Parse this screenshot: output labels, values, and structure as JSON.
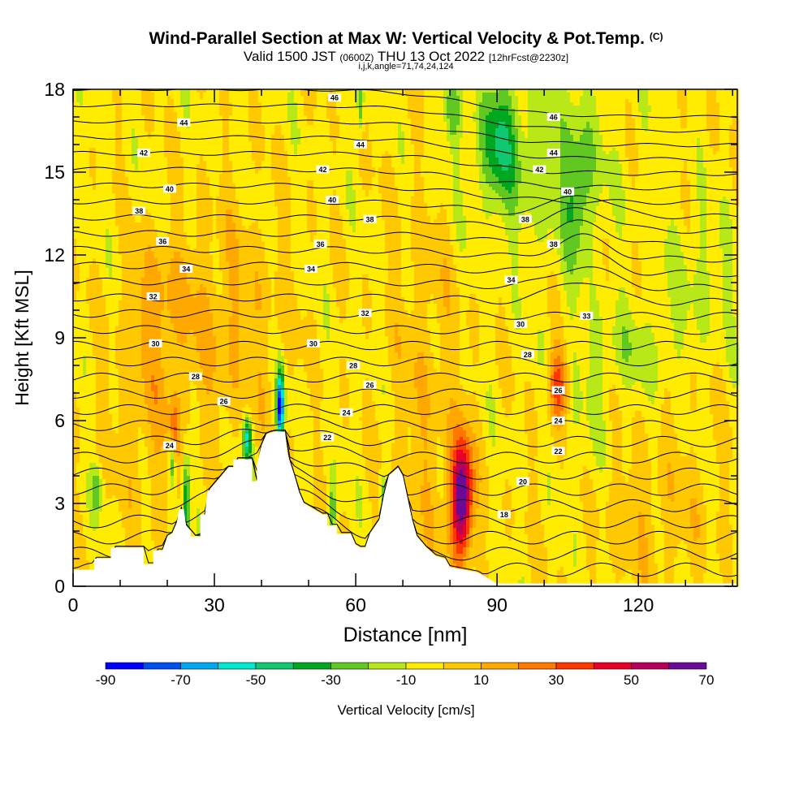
{
  "header": {
    "title": "Wind-Parallel Section at Max W: Vertical Velocity & Pot.Temp.",
    "title_tag": "(C)",
    "valid_main": "Valid 1500 JST",
    "valid_zulu": "(0600Z)",
    "valid_date": "THU 13 Oct 2022",
    "forecast": "[12hrFcst@2230z]",
    "indices": "i,j,k,angle=71,74,24,124"
  },
  "chart_data": {
    "type": "heatmap",
    "xlabel": "Distance [nm]",
    "ylabel": "Height [Kft MSL]",
    "xlim": [
      0,
      141
    ],
    "ylim": [
      0,
      18
    ],
    "x_ticks": [
      0,
      30,
      60,
      90,
      120
    ],
    "y_ticks": [
      0,
      3,
      6,
      9,
      12,
      15,
      18
    ],
    "colorbar": {
      "label": "Vertical Velocity [cm/s]",
      "tick_labels": [
        -90,
        -70,
        -50,
        -30,
        -10,
        10,
        30,
        50,
        70
      ],
      "bins": [
        {
          "lo": -90,
          "hi": -80,
          "color": "#0000ff"
        },
        {
          "lo": -80,
          "hi": -70,
          "color": "#0050f0"
        },
        {
          "lo": -70,
          "hi": -60,
          "color": "#00a8f0"
        },
        {
          "lo": -60,
          "hi": -50,
          "color": "#00e8d0"
        },
        {
          "lo": -50,
          "hi": -40,
          "color": "#10c870"
        },
        {
          "lo": -40,
          "hi": -30,
          "color": "#00a820"
        },
        {
          "lo": -30,
          "hi": -20,
          "color": "#60c820"
        },
        {
          "lo": -20,
          "hi": -10,
          "color": "#b8e818"
        },
        {
          "lo": -10,
          "hi": 0,
          "color": "#ffec00"
        },
        {
          "lo": 0,
          "hi": 10,
          "color": "#ffc800"
        },
        {
          "lo": 10,
          "hi": 20,
          "color": "#ffa800"
        },
        {
          "lo": 20,
          "hi": 30,
          "color": "#ff7800"
        },
        {
          "lo": 30,
          "hi": 40,
          "color": "#ff3800"
        },
        {
          "lo": 40,
          "hi": 50,
          "color": "#e80028"
        },
        {
          "lo": 50,
          "hi": 60,
          "color": "#b8005a"
        },
        {
          "lo": 60,
          "hi": 70,
          "color": "#6a0a96"
        }
      ]
    },
    "terrain_kft": [
      [
        0,
        0.6
      ],
      [
        4.5,
        0.6
      ],
      [
        4.5,
        1.0
      ],
      [
        8,
        1.0
      ],
      [
        8,
        1.4
      ],
      [
        15,
        1.4
      ],
      [
        15,
        0.8
      ],
      [
        17,
        0.8
      ],
      [
        17,
        1.3
      ],
      [
        19,
        1.3
      ],
      [
        20,
        1.8
      ],
      [
        21,
        1.9
      ],
      [
        22,
        2.3
      ],
      [
        22.5,
        2.8
      ],
      [
        23.5,
        2.8
      ],
      [
        24,
        2.2
      ],
      [
        25,
        2.0
      ],
      [
        25,
        1.8
      ],
      [
        27,
        1.8
      ],
      [
        27,
        2.6
      ],
      [
        28,
        2.6
      ],
      [
        28.5,
        3.4
      ],
      [
        31,
        3.9
      ],
      [
        33,
        4.3
      ],
      [
        34,
        4.3
      ],
      [
        34,
        4.6
      ],
      [
        38,
        4.6
      ],
      [
        38,
        3.8
      ],
      [
        39,
        3.8
      ],
      [
        39,
        4.4
      ],
      [
        40,
        5.1
      ],
      [
        41,
        5.5
      ],
      [
        42.5,
        5.6
      ],
      [
        45,
        5.6
      ],
      [
        45.5,
        4.8
      ],
      [
        47,
        4.0
      ],
      [
        48,
        3.4
      ],
      [
        49,
        3.0
      ],
      [
        51,
        2.8
      ],
      [
        53,
        2.6
      ],
      [
        54,
        2.6
      ],
      [
        54,
        2.2
      ],
      [
        56,
        2.2
      ],
      [
        56,
        1.9
      ],
      [
        59,
        1.9
      ],
      [
        60,
        1.5
      ],
      [
        61,
        1.4
      ],
      [
        62,
        1.4
      ],
      [
        63,
        1.9
      ],
      [
        65,
        2.4
      ],
      [
        66,
        3.3
      ],
      [
        67,
        4.0
      ],
      [
        69,
        4.3
      ],
      [
        70,
        4.0
      ],
      [
        71,
        3.2
      ],
      [
        72,
        2.4
      ],
      [
        73,
        1.8
      ],
      [
        75,
        1.4
      ],
      [
        77,
        1.1
      ],
      [
        79,
        1.0
      ],
      [
        80,
        0.7
      ],
      [
        83,
        0.6
      ],
      [
        86,
        0.5
      ],
      [
        88,
        0.3
      ],
      [
        90,
        0.1
      ],
      [
        93,
        0.1
      ],
      [
        141,
        0.1
      ]
    ],
    "theta_labels_C": [
      {
        "v": 46,
        "x": 55.5,
        "y": 17.7
      },
      {
        "v": 44,
        "x": 23.5,
        "y": 16.8
      },
      {
        "v": 42,
        "x": 15,
        "y": 15.7
      },
      {
        "v": 44,
        "x": 61,
        "y": 16.0
      },
      {
        "v": 42,
        "x": 53,
        "y": 15.1
      },
      {
        "v": 40,
        "x": 20.5,
        "y": 14.4
      },
      {
        "v": 40,
        "x": 55,
        "y": 14.0
      },
      {
        "v": 38,
        "x": 14,
        "y": 13.6
      },
      {
        "v": 38,
        "x": 63,
        "y": 13.3
      },
      {
        "v": 36,
        "x": 19,
        "y": 12.5
      },
      {
        "v": 36,
        "x": 52.5,
        "y": 12.4
      },
      {
        "v": 34,
        "x": 24,
        "y": 11.5
      },
      {
        "v": 34,
        "x": 50.5,
        "y": 11.5
      },
      {
        "v": 32,
        "x": 17,
        "y": 10.5
      },
      {
        "v": 32,
        "x": 62,
        "y": 9.9
      },
      {
        "v": 30,
        "x": 17.5,
        "y": 8.8
      },
      {
        "v": 30,
        "x": 51,
        "y": 8.8
      },
      {
        "v": 28,
        "x": 26,
        "y": 7.6
      },
      {
        "v": 28,
        "x": 59.5,
        "y": 8.0
      },
      {
        "v": 26,
        "x": 32,
        "y": 6.7
      },
      {
        "v": 26,
        "x": 63,
        "y": 7.3
      },
      {
        "v": 24,
        "x": 20.5,
        "y": 5.1
      },
      {
        "v": 24,
        "x": 58,
        "y": 6.3
      },
      {
        "v": 22,
        "x": 54,
        "y": 5.4
      },
      {
        "v": 46,
        "x": 102,
        "y": 17.0
      },
      {
        "v": 44,
        "x": 102,
        "y": 15.7
      },
      {
        "v": 42,
        "x": 99,
        "y": 15.1
      },
      {
        "v": 40,
        "x": 105,
        "y": 14.3
      },
      {
        "v": 38,
        "x": 96,
        "y": 13.3
      },
      {
        "v": 38,
        "x": 102,
        "y": 12.4
      },
      {
        "v": 34,
        "x": 93,
        "y": 11.1
      },
      {
        "v": 33,
        "x": 109,
        "y": 9.8
      },
      {
        "v": 30,
        "x": 95,
        "y": 9.5
      },
      {
        "v": 28,
        "x": 96.5,
        "y": 8.4
      },
      {
        "v": 26,
        "x": 103,
        "y": 7.1
      },
      {
        "v": 24,
        "x": 103,
        "y": 6.0
      },
      {
        "v": 22,
        "x": 103,
        "y": 4.9
      },
      {
        "v": 20,
        "x": 95.5,
        "y": 3.8
      },
      {
        "v": 18,
        "x": 91.5,
        "y": 2.6
      }
    ]
  }
}
